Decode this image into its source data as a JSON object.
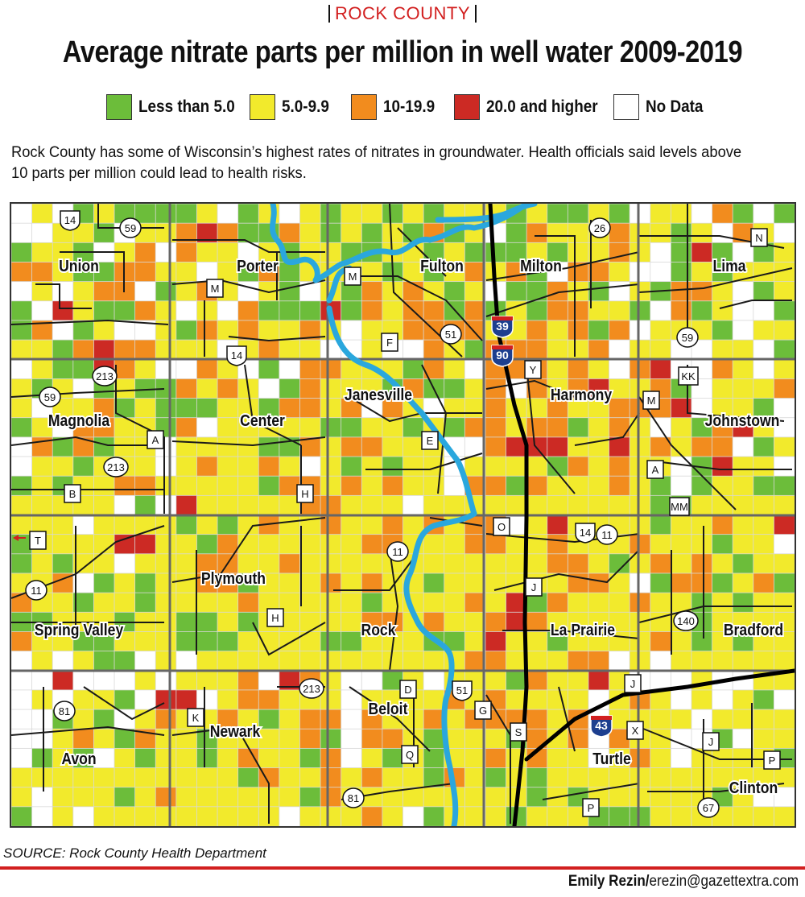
{
  "header": {
    "kicker": "ROCK COUNTY",
    "title": "Average nitrate parts per million in well water 2009-2019"
  },
  "legend": [
    {
      "label": "Less than 5.0",
      "color": "#6cbd3a"
    },
    {
      "label": "5.0-9.9",
      "color": "#f2ea2c"
    },
    {
      "label": "10-19.9",
      "color": "#f28c1e"
    },
    {
      "label": "20.0 and higher",
      "color": "#cc2a24"
    },
    {
      "label": "No Data",
      "color": "#ffffff"
    }
  ],
  "intro": "Rock County has some of Wisconsin’s highest rates of nitrates in groundwater. Health officials said levels above 10 parts per million could lead to health risks.",
  "map": {
    "townships": [
      "Union",
      "Porter",
      "Fulton",
      "Milton",
      "Lima",
      "Magnolia",
      "Center",
      "Janesville",
      "Harmony",
      "Johnstown",
      "Spring Valley",
      "Plymouth",
      "Rock",
      "La Prairie",
      "Bradford",
      "Avon",
      "Newark",
      "Beloit",
      "Turtle",
      "Clinton"
    ],
    "route_labels": [
      "14",
      "59",
      "M",
      "M",
      "F",
      "51",
      "39",
      "90",
      "26",
      "N",
      "59",
      "14",
      "213",
      "59",
      "A",
      "213",
      "B",
      "H",
      "E",
      "Y",
      "KK",
      "M",
      "A",
      "MM",
      "T",
      "11",
      "H",
      "11",
      "O",
      "14",
      "11",
      "J",
      "140",
      "81",
      "K",
      "213",
      "D",
      "51",
      "G",
      "Q",
      "81",
      "S",
      "43",
      "J",
      "X",
      "J",
      "P",
      "P",
      "67"
    ],
    "colors": {
      "green": "#6cbd3a",
      "yellow": "#f2ea2c",
      "orange": "#f28c1e",
      "red": "#cc2a24",
      "nodata": "#ffffff",
      "river": "#2aa7dd"
    },
    "grid": [
      "WYWGYGGGGYWGYWYGYYGYGYYYGYGGYGWYYWOGWG",
      "WWYYGWYYOROGGOYGYGYGOGYWGOYYYOYYGYWOYW",
      "GYYGWYOWOYYWYGYYGGYYGYGGGYGYYOYWGRGWGY",
      "OOYGGOOYYWYGOGYYYYGYGYOYOGWOOYWWGYGYYY",
      "WYWYOOWGYOYWYGWYGOYOYGYWGGOYGWYGOOYWGY",
      "GWRYGGOYWYWOGGGRGOYOOGOGYGOOYYGWOGYWWG",
      "GOWGYWWYGOYOYYOYWYYOOOOYYOYOGOWYYYGWYY",
      "YYGOROOYYYWYOYYWWYWWOYGOOOYYOWYYWWYYWG",
      "WYGGROYWWOYWGWOOYYYGOYWOOOYOYWORWWOYWY",
      "YGYWGYGGOYOYWGOYYYGOGGYOWOYORYYOGWYYYO",
      "YWYYOGYGGGYYGOOYOWOYWYYOYYOYYOOORWYYGW",
      "GYWOOYYGOWYYYYYGGYYGYGOOYOOGYOYWYGORYW",
      "WOGOGYYWYYYYGGOYOOYYYWWORRRYYRYOYOOWGY",
      "WYYGYYYWYOYYOYWYGYGYYWYYYYGOYOYYWGRYYW",
      "GYGYYOOYYYYYGOOYOYOYYWOOGOYYYOYGWGYYGG",
      "YYYYYWGWRYYYYYOOYYYWYYYYYYYYYYYGGYYYYY",
      "YYYWYYYYGYGYOYYOYYOYOYOOWYRYYYYGYYOYYR",
      "GYYYYRRYYGOYYYYYYOOYYYOOYYOYYYOYYYGYYW",
      "GYGYYWYYYOOYYOYYYYYYYYYYYYOOYGYOYOYGYY",
      "YYOWGYGYYOOGYYYOYOYYGYYYYYYOOYWGOOGYOG",
      "OYYGYYGYYYYOYYYYYGYYYYOYRGOYYYOYYGYGYY",
      "GGYYYGYYGGYGYYYYYOOYOYYOROYYYYYYYGYYYY",
      "OYYGGYYYGGGYYYYGGYYYGGYRYYGYYYYOYGYGYY",
      "WYWYGGWYWYYYYYYYYYYYYYOOYYYOOWYWYYYYYY",
      "WWRWWWYWYYYOWROYWWGYWYYYGOYYRYWWWYWWYY",
      "WYWYYGWRRWYOOYYYWYYYYOYOYYYYWYOYWYWYGW",
      "WWGYGWYOYYOYGYOOWOYYOYOOOOYOWYYYYWYYYY",
      "WWYOYGOYYGYYYYOGWOOYGYYYGOYOWOYYWWGWYY",
      "WGYGWYGYYGYOYYGOWYGYGYYOYOYYWYOYWYYYYG",
      "YYYYYYYYYYYGOYYOYOYYGOYGYGYYYYYYYYYYYY",
      "YWYYYGYOYYYYYYGOYYYYYYYYYGYGYYYYYYGYWW",
      "GWYWYYYYYYYYYWYYYOYWGYYYGYYYGGGYYYYYYY"
    ]
  },
  "footer": {
    "source": "SOURCE: Rock County Health Department",
    "credit_name": "Emily Rezin/",
    "credit_email": "erezin@gazettextra.com"
  }
}
